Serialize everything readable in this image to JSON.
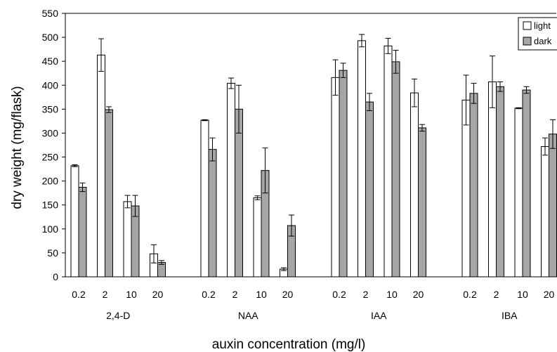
{
  "chart_data": {
    "type": "bar",
    "ylabel": "dry weight (mg/flask)",
    "xlabel": "auxin concentration (mg/l)",
    "ylim": [
      0,
      550
    ],
    "yticks": [
      0,
      50,
      100,
      150,
      200,
      250,
      300,
      350,
      400,
      450,
      500,
      550
    ],
    "grid": false,
    "legend_position": "top-right",
    "groups": [
      {
        "name": "2,4-D",
        "categories": [
          "0.2",
          "2",
          "10",
          "20"
        ]
      },
      {
        "name": "NAA",
        "categories": [
          "0.2",
          "2",
          "10",
          "20"
        ]
      },
      {
        "name": "IAA",
        "categories": [
          "0.2",
          "2",
          "10",
          "20"
        ]
      },
      {
        "name": "IBA",
        "categories": [
          "0.2",
          "2",
          "10",
          "20"
        ]
      }
    ],
    "series": [
      {
        "name": "light",
        "color": "#ffffff",
        "values": [
          232,
          463,
          157,
          48,
          327,
          404,
          165,
          16,
          416,
          493,
          482,
          384,
          369,
          407,
          352,
          272
        ],
        "errors": [
          2,
          34,
          13,
          19,
          1,
          11,
          4,
          3,
          37,
          13,
          16,
          29,
          52,
          54,
          1,
          18
        ]
      },
      {
        "name": "dark",
        "color": "#a6a6a6",
        "values": [
          187,
          349,
          148,
          30,
          266,
          350,
          222,
          107,
          431,
          365,
          449,
          311,
          383,
          397,
          390,
          298
        ],
        "errors": [
          9,
          6,
          22,
          4,
          24,
          50,
          47,
          22,
          15,
          18,
          24,
          7,
          21,
          10,
          7,
          30
        ]
      }
    ]
  }
}
